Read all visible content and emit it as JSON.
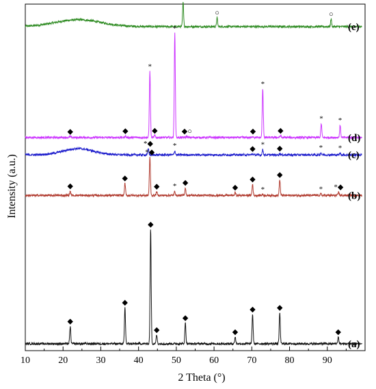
{
  "chart_data": {
    "type": "line",
    "xlabel": "2 Theta (°)",
    "ylabel": "Intensity (a.u.)",
    "xlim": [
      10,
      100
    ],
    "x_ticks": [
      10,
      20,
      30,
      40,
      50,
      60,
      70,
      80,
      90
    ],
    "y_ticks": "none",
    "grid": false,
    "legend": "none (series labels printed at right end of each trace)",
    "marker_legend": {
      "◆": "phase marker (diamond)",
      "*": "phase marker (asterisk)",
      "○": "phase marker (open circle)"
    },
    "series": [
      {
        "label": "(e)",
        "color": "#2e8b22",
        "baseline": 0.935,
        "amorphous_hump": {
          "center": 24,
          "width": 6,
          "height": 0.02
        },
        "peaks": [
          {
            "x": 51.8,
            "height": 0.07,
            "marker": "○"
          },
          {
            "x": 60.8,
            "height": 0.025,
            "marker": "○"
          },
          {
            "x": 91.0,
            "height": 0.022,
            "marker": "○"
          }
        ]
      },
      {
        "label": "(d)",
        "color": "#cc33ff",
        "baseline": 0.615,
        "peaks": [
          {
            "x": 21.9,
            "height": 0.003,
            "marker": "◆"
          },
          {
            "x": 36.5,
            "height": 0.005,
            "marker": "◆"
          },
          {
            "x": 43.0,
            "height": 0.19,
            "marker": "*"
          },
          {
            "x": 44.3,
            "height": 0.006,
            "marker": "◆"
          },
          {
            "x": 49.6,
            "height": 0.3,
            "marker": "*"
          },
          {
            "x": 52.8,
            "height": 0.004,
            "marker": "◆○"
          },
          {
            "x": 70.3,
            "height": 0.004,
            "marker": "◆"
          },
          {
            "x": 72.9,
            "height": 0.14,
            "marker": "*"
          },
          {
            "x": 77.6,
            "height": 0.006,
            "marker": "◆"
          },
          {
            "x": 88.4,
            "height": 0.04,
            "marker": "*"
          },
          {
            "x": 93.4,
            "height": 0.035,
            "marker": "*"
          }
        ]
      },
      {
        "label": "(c)",
        "color": "#1c1ccc",
        "baseline": 0.565,
        "amorphous_hump": {
          "center": 24,
          "width": 4,
          "height": 0.018
        },
        "peaks": [
          {
            "x": 42.6,
            "height": 0.018,
            "marker": "*◆"
          },
          {
            "x": 49.6,
            "height": 0.012,
            "marker": "*"
          },
          {
            "x": 70.2,
            "height": 0.003,
            "marker": "◆"
          },
          {
            "x": 72.9,
            "height": 0.015,
            "marker": "*"
          },
          {
            "x": 77.4,
            "height": 0.004,
            "marker": "◆"
          },
          {
            "x": 88.3,
            "height": 0.006,
            "marker": "*"
          },
          {
            "x": 93.4,
            "height": 0.005,
            "marker": "*"
          }
        ]
      },
      {
        "label": "(b)",
        "color": "#b03a2e",
        "baseline": 0.448,
        "peaks": [
          {
            "x": 21.9,
            "height": 0.012,
            "marker": "◆"
          },
          {
            "x": 36.4,
            "height": 0.035,
            "marker": "◆"
          },
          {
            "x": 43.0,
            "height": 0.11,
            "marker": "*◆"
          },
          {
            "x": 44.8,
            "height": 0.011,
            "marker": "◆"
          },
          {
            "x": 49.6,
            "height": 0.012,
            "marker": "*"
          },
          {
            "x": 52.4,
            "height": 0.022,
            "marker": "◆"
          },
          {
            "x": 65.6,
            "height": 0.009,
            "marker": "◆"
          },
          {
            "x": 70.2,
            "height": 0.032,
            "marker": "◆"
          },
          {
            "x": 72.9,
            "height": 0.003,
            "marker": "*"
          },
          {
            "x": 77.4,
            "height": 0.045,
            "marker": "◆"
          },
          {
            "x": 88.3,
            "height": 0.004,
            "marker": "*"
          },
          {
            "x": 93.0,
            "height": 0.01,
            "marker": "*◆"
          }
        ]
      },
      {
        "label": "(a)",
        "color": "#111111",
        "baseline": 0.02,
        "peaks": [
          {
            "x": 21.9,
            "height": 0.05,
            "marker": "◆"
          },
          {
            "x": 36.4,
            "height": 0.105,
            "marker": "◆"
          },
          {
            "x": 43.2,
            "height": 0.33,
            "marker": "◆"
          },
          {
            "x": 44.8,
            "height": 0.025,
            "marker": "◆"
          },
          {
            "x": 52.4,
            "height": 0.06,
            "marker": "◆"
          },
          {
            "x": 65.6,
            "height": 0.02,
            "marker": "◆"
          },
          {
            "x": 70.2,
            "height": 0.085,
            "marker": "◆"
          },
          {
            "x": 77.4,
            "height": 0.09,
            "marker": "◆"
          },
          {
            "x": 92.9,
            "height": 0.02,
            "marker": "◆"
          }
        ]
      }
    ]
  }
}
